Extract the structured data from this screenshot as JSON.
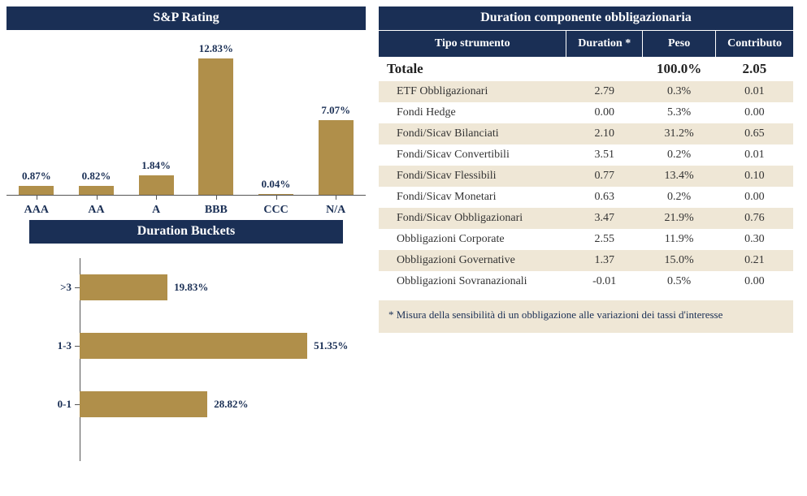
{
  "sp_chart": {
    "title": "S&P Rating",
    "type": "bar",
    "categories": [
      "AAA",
      "AA",
      "A",
      "BBB",
      "CCC",
      "N/A"
    ],
    "values": [
      0.87,
      0.82,
      1.84,
      12.83,
      0.04,
      7.07
    ],
    "value_labels": [
      "0.87%",
      "0.82%",
      "1.84%",
      "12.83%",
      "0.04%",
      "7.07%"
    ],
    "ylim": [
      0,
      13
    ],
    "bar_color": "#b08f4a",
    "text_color": "#1a2f55",
    "title_bg": "#1a2f55",
    "background": "#ffffff",
    "label_fontsize": 14,
    "value_fontsize": 13
  },
  "db_chart": {
    "title": "Duration Buckets",
    "type": "bar-horizontal",
    "categories": [
      ">3",
      "1-3",
      "0-1"
    ],
    "values": [
      19.83,
      51.35,
      28.82
    ],
    "value_labels": [
      "19.83%",
      "51.35%",
      "28.82%"
    ],
    "xlim": [
      0,
      55
    ],
    "bar_color": "#b08f4a",
    "text_color": "#1a2f55",
    "title_bg": "#1a2f55",
    "background": "#ffffff",
    "value_fontsize": 13
  },
  "dur_table": {
    "title": "Duration componente obbligazionaria",
    "columns": [
      "Tipo strumento",
      "Duration *",
      "Peso",
      "Contributo"
    ],
    "total_row": {
      "label": "Totale",
      "duration": "",
      "peso": "100.0%",
      "contrib": "2.05"
    },
    "rows": [
      {
        "label": "ETF Obbligazionari",
        "duration": "2.79",
        "peso": "0.3%",
        "contrib": "0.01"
      },
      {
        "label": "Fondi Hedge",
        "duration": "0.00",
        "peso": "5.3%",
        "contrib": "0.00"
      },
      {
        "label": "Fondi/Sicav Bilanciati",
        "duration": "2.10",
        "peso": "31.2%",
        "contrib": "0.65"
      },
      {
        "label": "Fondi/Sicav Convertibili",
        "duration": "3.51",
        "peso": "0.2%",
        "contrib": "0.01"
      },
      {
        "label": "Fondi/Sicav Flessibili",
        "duration": "0.77",
        "peso": "13.4%",
        "contrib": "0.10"
      },
      {
        "label": "Fondi/Sicav Monetari",
        "duration": "0.63",
        "peso": "0.2%",
        "contrib": "0.00"
      },
      {
        "label": "Fondi/Sicav Obbligazionari",
        "duration": "3.47",
        "peso": "21.9%",
        "contrib": "0.76"
      },
      {
        "label": "Obbligazioni Corporate",
        "duration": "2.55",
        "peso": "11.9%",
        "contrib": "0.30"
      },
      {
        "label": "Obbligazioni Governative",
        "duration": "1.37",
        "peso": "15.0%",
        "contrib": "0.21"
      },
      {
        "label": "Obbligazioni Sovranazionali",
        "duration": "-0.01",
        "peso": "0.5%",
        "contrib": "0.00"
      }
    ],
    "footnote": "* Misura della sensibilità di un obbligazione alle variazioni dei tassi d'interesse",
    "header_bg": "#1a2f55",
    "header_fg": "#ffffff",
    "row_alt_bg": "#efe7d6",
    "row_bg": "#ffffff",
    "text_color": "#333333"
  }
}
